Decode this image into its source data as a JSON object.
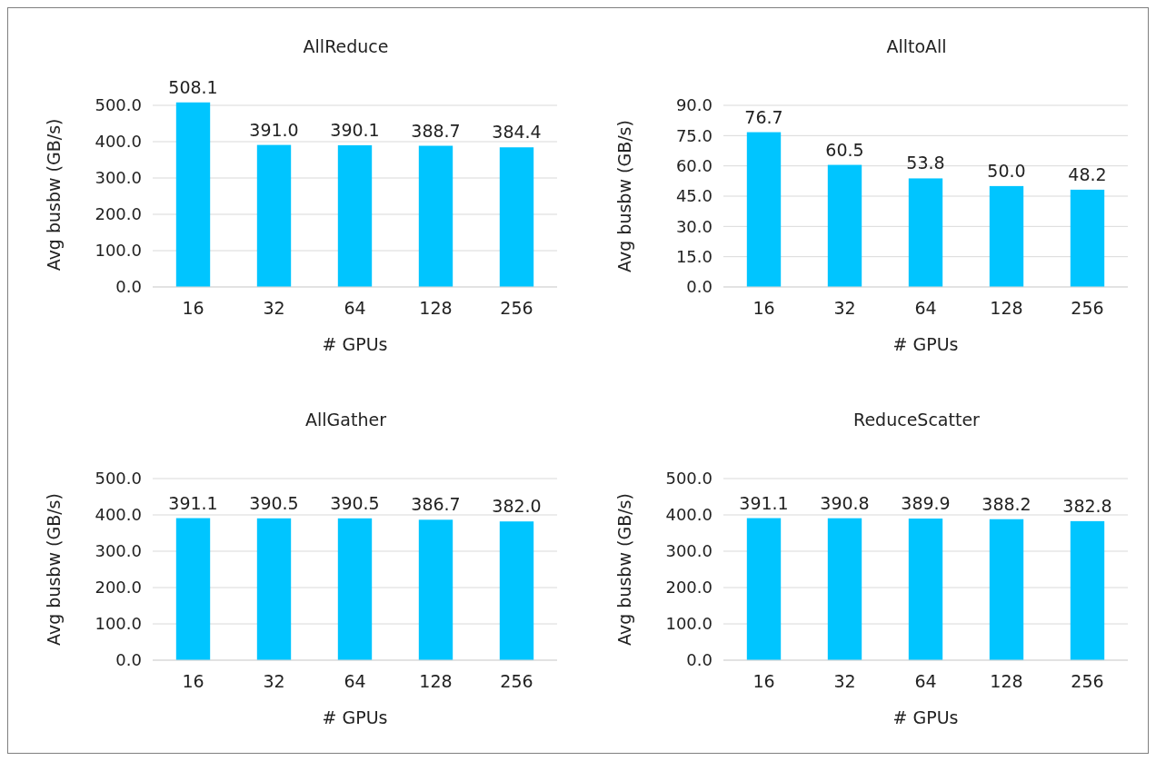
{
  "chart_data": [
    {
      "type": "bar",
      "title": "AllReduce",
      "xlabel": "# GPUs",
      "ylabel": "Avg busbw (GB/s)",
      "categories": [
        "16",
        "32",
        "64",
        "128",
        "256"
      ],
      "values": [
        508.1,
        391.0,
        390.1,
        388.7,
        384.4
      ],
      "value_labels": [
        "508.1",
        "391.0",
        "390.1",
        "388.7",
        "384.4"
      ],
      "color": "#00c5ff",
      "ylim": [
        0,
        508.1
      ],
      "yticks": [
        {
          "value": 0,
          "label": "0.0"
        },
        {
          "value": 100,
          "label": "100.0"
        },
        {
          "value": 200,
          "label": "200.0"
        },
        {
          "value": 300,
          "label": "300.0"
        },
        {
          "value": 400,
          "label": "400.0"
        },
        {
          "value": 500,
          "label": "500.0"
        }
      ],
      "grid": "y"
    },
    {
      "type": "bar",
      "title": "AlltoAll",
      "xlabel": "# GPUs",
      "ylabel": "Avg busbw (GB/s)",
      "categories": [
        "16",
        "32",
        "64",
        "128",
        "256"
      ],
      "values": [
        76.7,
        60.5,
        53.8,
        50.0,
        48.2
      ],
      "value_labels": [
        "76.7",
        "60.5",
        "53.8",
        "50.0",
        "48.2"
      ],
      "color": "#00c5ff",
      "ylim": [
        0,
        90
      ],
      "yticks": [
        {
          "value": 0,
          "label": "0.0"
        },
        {
          "value": 15,
          "label": "15.0"
        },
        {
          "value": 30,
          "label": "30.0"
        },
        {
          "value": 45,
          "label": "45.0"
        },
        {
          "value": 60,
          "label": "60.0"
        },
        {
          "value": 75,
          "label": "75.0"
        },
        {
          "value": 90,
          "label": "90.0"
        }
      ],
      "grid": "y"
    },
    {
      "type": "bar",
      "title": "AllGather",
      "xlabel": "# GPUs",
      "ylabel": "Avg busbw (GB/s)",
      "categories": [
        "16",
        "32",
        "64",
        "128",
        "256"
      ],
      "values": [
        391.1,
        390.5,
        390.5,
        386.7,
        382.0
      ],
      "value_labels": [
        "391.1",
        "390.5",
        "390.5",
        "386.7",
        "382.0"
      ],
      "color": "#00c5ff",
      "ylim": [
        0,
        500
      ],
      "yticks": [
        {
          "value": 0,
          "label": "0.0"
        },
        {
          "value": 100,
          "label": "100.0"
        },
        {
          "value": 200,
          "label": "200.0"
        },
        {
          "value": 300,
          "label": "300.0"
        },
        {
          "value": 400,
          "label": "400.0"
        },
        {
          "value": 500,
          "label": "500.0"
        }
      ],
      "grid": "y"
    },
    {
      "type": "bar",
      "title": "ReduceScatter",
      "xlabel": "# GPUs",
      "ylabel": "Avg busbw (GB/s)",
      "categories": [
        "16",
        "32",
        "64",
        "128",
        "256"
      ],
      "values": [
        391.1,
        390.8,
        389.9,
        388.2,
        382.8
      ],
      "value_labels": [
        "391.1",
        "390.8",
        "389.9",
        "388.2",
        "382.8"
      ],
      "color": "#00c5ff",
      "ylim": [
        0,
        500
      ],
      "yticks": [
        {
          "value": 0,
          "label": "0.0"
        },
        {
          "value": 100,
          "label": "100.0"
        },
        {
          "value": 200,
          "label": "200.0"
        },
        {
          "value": 300,
          "label": "300.0"
        },
        {
          "value": 400,
          "label": "400.0"
        },
        {
          "value": 500,
          "label": "500.0"
        }
      ],
      "grid": "y"
    }
  ]
}
